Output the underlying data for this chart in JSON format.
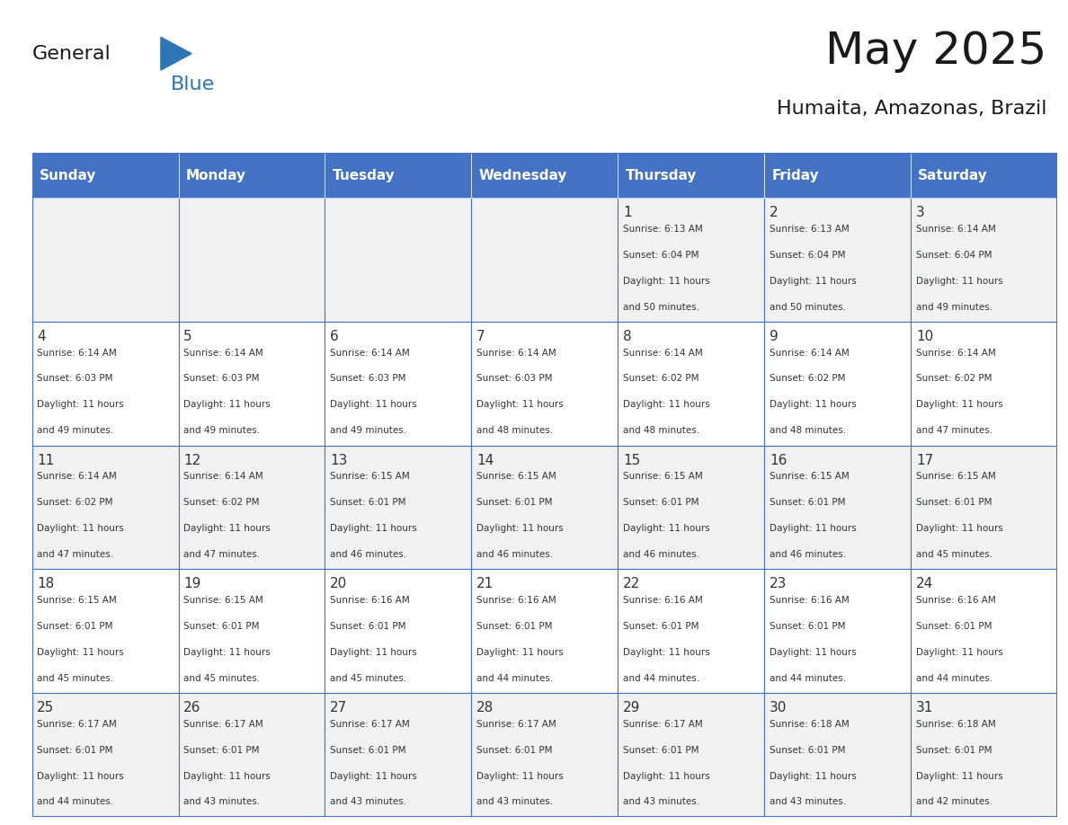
{
  "title": "May 2025",
  "subtitle": "Humaita, Amazonas, Brazil",
  "days_of_week": [
    "Sunday",
    "Monday",
    "Tuesday",
    "Wednesday",
    "Thursday",
    "Friday",
    "Saturday"
  ],
  "header_bg": "#4472C4",
  "header_text": "#FFFFFF",
  "cell_bg_odd": "#F2F2F2",
  "cell_bg_even": "#FFFFFF",
  "cell_border": "#4472C4",
  "day_num_color": "#333333",
  "info_text_color": "#333333",
  "general_color": "#222222",
  "blue_color": "#2E75B6",
  "calendar_data": [
    [
      null,
      null,
      null,
      null,
      {
        "day": 1,
        "sunrise": "6:13 AM",
        "sunset": "6:04 PM",
        "daylight": "11 hours and 50 minutes."
      },
      {
        "day": 2,
        "sunrise": "6:13 AM",
        "sunset": "6:04 PM",
        "daylight": "11 hours and 50 minutes."
      },
      {
        "day": 3,
        "sunrise": "6:14 AM",
        "sunset": "6:04 PM",
        "daylight": "11 hours and 49 minutes."
      }
    ],
    [
      {
        "day": 4,
        "sunrise": "6:14 AM",
        "sunset": "6:03 PM",
        "daylight": "11 hours and 49 minutes."
      },
      {
        "day": 5,
        "sunrise": "6:14 AM",
        "sunset": "6:03 PM",
        "daylight": "11 hours and 49 minutes."
      },
      {
        "day": 6,
        "sunrise": "6:14 AM",
        "sunset": "6:03 PM",
        "daylight": "11 hours and 49 minutes."
      },
      {
        "day": 7,
        "sunrise": "6:14 AM",
        "sunset": "6:03 PM",
        "daylight": "11 hours and 48 minutes."
      },
      {
        "day": 8,
        "sunrise": "6:14 AM",
        "sunset": "6:02 PM",
        "daylight": "11 hours and 48 minutes."
      },
      {
        "day": 9,
        "sunrise": "6:14 AM",
        "sunset": "6:02 PM",
        "daylight": "11 hours and 48 minutes."
      },
      {
        "day": 10,
        "sunrise": "6:14 AM",
        "sunset": "6:02 PM",
        "daylight": "11 hours and 47 minutes."
      }
    ],
    [
      {
        "day": 11,
        "sunrise": "6:14 AM",
        "sunset": "6:02 PM",
        "daylight": "11 hours and 47 minutes."
      },
      {
        "day": 12,
        "sunrise": "6:14 AM",
        "sunset": "6:02 PM",
        "daylight": "11 hours and 47 minutes."
      },
      {
        "day": 13,
        "sunrise": "6:15 AM",
        "sunset": "6:01 PM",
        "daylight": "11 hours and 46 minutes."
      },
      {
        "day": 14,
        "sunrise": "6:15 AM",
        "sunset": "6:01 PM",
        "daylight": "11 hours and 46 minutes."
      },
      {
        "day": 15,
        "sunrise": "6:15 AM",
        "sunset": "6:01 PM",
        "daylight": "11 hours and 46 minutes."
      },
      {
        "day": 16,
        "sunrise": "6:15 AM",
        "sunset": "6:01 PM",
        "daylight": "11 hours and 46 minutes."
      },
      {
        "day": 17,
        "sunrise": "6:15 AM",
        "sunset": "6:01 PM",
        "daylight": "11 hours and 45 minutes."
      }
    ],
    [
      {
        "day": 18,
        "sunrise": "6:15 AM",
        "sunset": "6:01 PM",
        "daylight": "11 hours and 45 minutes."
      },
      {
        "day": 19,
        "sunrise": "6:15 AM",
        "sunset": "6:01 PM",
        "daylight": "11 hours and 45 minutes."
      },
      {
        "day": 20,
        "sunrise": "6:16 AM",
        "sunset": "6:01 PM",
        "daylight": "11 hours and 45 minutes."
      },
      {
        "day": 21,
        "sunrise": "6:16 AM",
        "sunset": "6:01 PM",
        "daylight": "11 hours and 44 minutes."
      },
      {
        "day": 22,
        "sunrise": "6:16 AM",
        "sunset": "6:01 PM",
        "daylight": "11 hours and 44 minutes."
      },
      {
        "day": 23,
        "sunrise": "6:16 AM",
        "sunset": "6:01 PM",
        "daylight": "11 hours and 44 minutes."
      },
      {
        "day": 24,
        "sunrise": "6:16 AM",
        "sunset": "6:01 PM",
        "daylight": "11 hours and 44 minutes."
      }
    ],
    [
      {
        "day": 25,
        "sunrise": "6:17 AM",
        "sunset": "6:01 PM",
        "daylight": "11 hours and 44 minutes."
      },
      {
        "day": 26,
        "sunrise": "6:17 AM",
        "sunset": "6:01 PM",
        "daylight": "11 hours and 43 minutes."
      },
      {
        "day": 27,
        "sunrise": "6:17 AM",
        "sunset": "6:01 PM",
        "daylight": "11 hours and 43 minutes."
      },
      {
        "day": 28,
        "sunrise": "6:17 AM",
        "sunset": "6:01 PM",
        "daylight": "11 hours and 43 minutes."
      },
      {
        "day": 29,
        "sunrise": "6:17 AM",
        "sunset": "6:01 PM",
        "daylight": "11 hours and 43 minutes."
      },
      {
        "day": 30,
        "sunrise": "6:18 AM",
        "sunset": "6:01 PM",
        "daylight": "11 hours and 43 minutes."
      },
      {
        "day": 31,
        "sunrise": "6:18 AM",
        "sunset": "6:01 PM",
        "daylight": "11 hours and 42 minutes."
      }
    ]
  ],
  "logo_general_color": "#1a1a1a",
  "logo_blue_color": "#2E75B6"
}
